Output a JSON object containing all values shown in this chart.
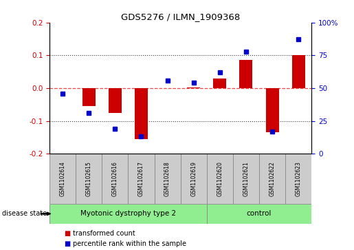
{
  "title": "GDS5276 / ILMN_1909368",
  "samples": [
    "GSM1102614",
    "GSM1102615",
    "GSM1102616",
    "GSM1102617",
    "GSM1102618",
    "GSM1102619",
    "GSM1102620",
    "GSM1102621",
    "GSM1102622",
    "GSM1102623"
  ],
  "groups": [
    {
      "label": "Myotonic dystrophy type 2",
      "indices": [
        0,
        1,
        2,
        3,
        4,
        5
      ],
      "color": "#90EE90"
    },
    {
      "label": "control",
      "indices": [
        6,
        7,
        8,
        9
      ],
      "color": "#90EE90"
    }
  ],
  "bar_values": [
    0.0,
    -0.055,
    -0.075,
    -0.155,
    0.0,
    0.002,
    0.03,
    0.085,
    -0.135,
    0.1
  ],
  "scatter_values": [
    46,
    31,
    19,
    13,
    56,
    54,
    62,
    78,
    17,
    87
  ],
  "ylim_left": [
    -0.2,
    0.2
  ],
  "ylim_right": [
    0,
    100
  ],
  "yticks_left": [
    -0.2,
    -0.1,
    0.0,
    0.1,
    0.2
  ],
  "yticks_right": [
    0,
    25,
    50,
    75,
    100
  ],
  "bar_color": "#CC0000",
  "scatter_color": "#0000CC",
  "zero_line_color": "#EE4444",
  "dotted_line_color": "#333333",
  "bg_plot": "#FFFFFF",
  "bg_sample_box": "#CCCCCC",
  "label_color_left": "#CC0000",
  "label_color_right": "#0000CC",
  "disease_state_label": "disease state",
  "legend_bar": "transformed count",
  "legend_scatter": "percentile rank within the sample"
}
